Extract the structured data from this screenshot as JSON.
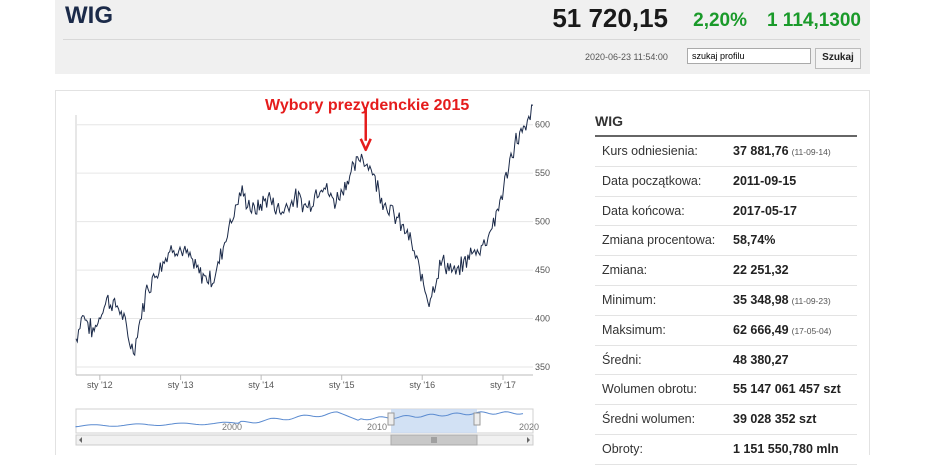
{
  "header": {
    "ticker": "WIG",
    "price": "51 720,15",
    "change_pct": "2,20%",
    "change_abs": "1 114,1300",
    "datetime": "2020-06-23 11:54:00",
    "search_value": "szukaj profilu",
    "search_button": "Szukaj"
  },
  "annotation": {
    "text": "Wybory prezydenckie 2015",
    "color": "#e51c1c"
  },
  "chart_data": {
    "type": "line",
    "x_ticks": [
      "sty '12",
      "sty '13",
      "sty '14",
      "sty '15",
      "sty '16",
      "sty '17"
    ],
    "y_ticks": [
      "60000,00",
      "55000,00",
      "50000,00",
      "45000,00",
      "40000,00",
      "35000,00"
    ],
    "ylim": [
      35000,
      61000
    ],
    "x_range": [
      "2011-09-15",
      "2017-05-17"
    ],
    "series": [
      {
        "values_approx": [
          [
            "2011-09-15",
            37900
          ],
          [
            "2011-10-15",
            40500
          ],
          [
            "2011-12-01",
            38500
          ],
          [
            "2012-02-01",
            42000
          ],
          [
            "2012-04-01",
            41000
          ],
          [
            "2012-06-01",
            36500
          ],
          [
            "2012-08-01",
            43000
          ],
          [
            "2012-10-01",
            45500
          ],
          [
            "2012-12-01",
            47500
          ],
          [
            "2013-02-01",
            46500
          ],
          [
            "2013-04-01",
            44500
          ],
          [
            "2013-06-01",
            44000
          ],
          [
            "2013-08-01",
            49000
          ],
          [
            "2013-10-01",
            53000
          ],
          [
            "2013-12-01",
            51000
          ],
          [
            "2014-02-01",
            52500
          ],
          [
            "2014-04-01",
            51000
          ],
          [
            "2014-06-01",
            52500
          ],
          [
            "2014-08-01",
            51500
          ],
          [
            "2014-10-01",
            54000
          ],
          [
            "2014-12-01",
            52000
          ],
          [
            "2015-02-01",
            54500
          ],
          [
            "2015-04-01",
            56800
          ],
          [
            "2015-05-15",
            55500
          ],
          [
            "2015-07-01",
            52500
          ],
          [
            "2015-09-01",
            50500
          ],
          [
            "2015-11-01",
            48500
          ],
          [
            "2016-01-01",
            44000
          ],
          [
            "2016-02-01",
            42000
          ],
          [
            "2016-04-01",
            46000
          ],
          [
            "2016-06-01",
            44500
          ],
          [
            "2016-08-01",
            46500
          ],
          [
            "2016-10-01",
            47500
          ],
          [
            "2016-12-01",
            50500
          ],
          [
            "2017-01-15",
            54500
          ],
          [
            "2017-03-01",
            58500
          ],
          [
            "2017-04-15",
            59500
          ],
          [
            "2017-05-17",
            62000
          ]
        ]
      }
    ],
    "navigator_x_labels": [
      "2000",
      "2010",
      "2020"
    ],
    "line_color": "#1b2a49",
    "grid": true
  },
  "stats": {
    "title": "WIG",
    "rows": [
      {
        "label": "Kurs odniesienia:",
        "value": "37 881,76",
        "date": "(11-09-14)"
      },
      {
        "label": "Data początkowa:",
        "value": "2011-09-15",
        "date": ""
      },
      {
        "label": "Data końcowa:",
        "value": "2017-05-17",
        "date": ""
      },
      {
        "label": "Zmiana procentowa:",
        "value": "58,74%",
        "date": ""
      },
      {
        "label": "Zmiana:",
        "value": "22 251,32",
        "date": ""
      },
      {
        "label": "Minimum:",
        "value": "35 348,98",
        "date": "(11-09-23)"
      },
      {
        "label": "Maksimum:",
        "value": "62 666,49",
        "date": "(17-05-04)"
      },
      {
        "label": "Średni:",
        "value": "48 380,27",
        "date": ""
      },
      {
        "label": "Wolumen obrotu:",
        "value": "55 147 061 457 szt",
        "date": ""
      },
      {
        "label": "Średni wolumen:",
        "value": "39 028 352 szt",
        "date": ""
      },
      {
        "label": "Obroty:",
        "value": "1 151 550,780 mln",
        "date": ""
      }
    ]
  },
  "colors": {
    "positive": "#1a9a2a",
    "accent": "#e51c1c",
    "navigator_selection": "#c7d9f1"
  }
}
